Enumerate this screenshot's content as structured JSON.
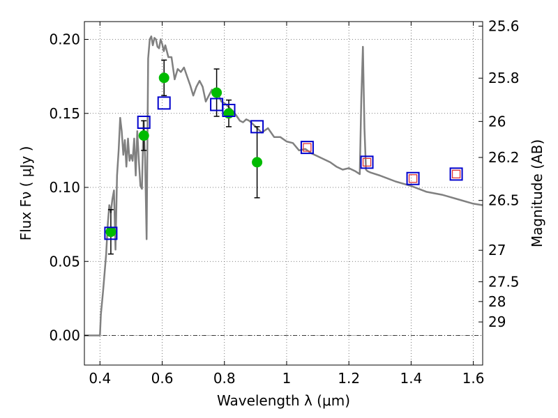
{
  "chart_data": {
    "type": "scatter",
    "xlabel": "Wavelength  λ (μm)",
    "ylabel": "Flux  Fν  ( μJy )",
    "y2label": "Magnitude (AB)",
    "xlim": [
      0.35,
      1.63
    ],
    "ylim": [
      -0.02,
      0.212
    ],
    "x_ticks": [
      0.4,
      0.6,
      0.8,
      1.0,
      1.2,
      1.4,
      1.6
    ],
    "x_tick_labels": [
      "0.4",
      "0.6",
      "0.8",
      "1",
      "1.2",
      "1.4",
      "1.6"
    ],
    "y_ticks": [
      0.0,
      0.05,
      0.1,
      0.15,
      0.2
    ],
    "y_tick_labels": [
      "0.00",
      "0.05",
      "0.10",
      "0.15",
      "0.20"
    ],
    "mag_ticks": [
      {
        "label": "25.6",
        "mag": 25.6
      },
      {
        "label": "25.8",
        "mag": 25.8
      },
      {
        "label": "26",
        "mag": 26.0
      },
      {
        "label": "26.2",
        "mag": 26.2
      },
      {
        "label": "26.5",
        "mag": 26.5
      },
      {
        "label": "27",
        "mag": 27.0
      },
      {
        "label": "27.5",
        "mag": 27.5
      },
      {
        "label": "28",
        "mag": 28.0
      },
      {
        "label": "29",
        "mag": 29.0
      }
    ],
    "grid": true,
    "zero_line": 0.0,
    "colors": {
      "model": "#808080",
      "observed": "#00bb00",
      "model_box": "#0000cc",
      "upper_box": "#dd3333",
      "errorbar": "#000000"
    },
    "series": [
      {
        "name": "model spectrum",
        "kind": "line",
        "x": [
          0.35,
          0.4,
          0.403,
          0.41,
          0.42,
          0.425,
          0.43,
          0.435,
          0.44,
          0.445,
          0.45,
          0.455,
          0.46,
          0.465,
          0.47,
          0.475,
          0.48,
          0.485,
          0.49,
          0.495,
          0.5,
          0.505,
          0.51,
          0.515,
          0.52,
          0.525,
          0.53,
          0.535,
          0.54,
          0.545,
          0.55,
          0.555,
          0.56,
          0.565,
          0.57,
          0.575,
          0.58,
          0.585,
          0.59,
          0.595,
          0.6,
          0.605,
          0.61,
          0.62,
          0.63,
          0.64,
          0.65,
          0.66,
          0.67,
          0.68,
          0.69,
          0.7,
          0.71,
          0.72,
          0.73,
          0.74,
          0.75,
          0.76,
          0.77,
          0.78,
          0.79,
          0.8,
          0.81,
          0.82,
          0.83,
          0.84,
          0.85,
          0.86,
          0.87,
          0.88,
          0.89,
          0.9,
          0.92,
          0.94,
          0.96,
          0.98,
          1.0,
          1.02,
          1.04,
          1.06,
          1.08,
          1.1,
          1.12,
          1.14,
          1.16,
          1.18,
          1.2,
          1.22,
          1.235,
          1.24,
          1.245,
          1.25,
          1.255,
          1.26,
          1.27,
          1.3,
          1.35,
          1.4,
          1.45,
          1.5,
          1.55,
          1.6,
          1.63
        ],
        "y": [
          0.0,
          0.0,
          0.014,
          0.03,
          0.055,
          0.075,
          0.088,
          0.083,
          0.092,
          0.098,
          0.058,
          0.108,
          0.125,
          0.147,
          0.138,
          0.122,
          0.132,
          0.114,
          0.133,
          0.118,
          0.122,
          0.118,
          0.133,
          0.108,
          0.138,
          0.118,
          0.101,
          0.099,
          0.145,
          0.12,
          0.065,
          0.187,
          0.2,
          0.202,
          0.196,
          0.201,
          0.2,
          0.195,
          0.194,
          0.2,
          0.197,
          0.192,
          0.196,
          0.188,
          0.188,
          0.173,
          0.18,
          0.178,
          0.181,
          0.175,
          0.169,
          0.162,
          0.168,
          0.172,
          0.168,
          0.158,
          0.162,
          0.166,
          0.162,
          0.163,
          0.158,
          0.157,
          0.155,
          0.153,
          0.151,
          0.148,
          0.145,
          0.144,
          0.146,
          0.145,
          0.143,
          0.141,
          0.137,
          0.14,
          0.134,
          0.134,
          0.131,
          0.13,
          0.125,
          0.126,
          0.123,
          0.121,
          0.119,
          0.117,
          0.114,
          0.112,
          0.113,
          0.111,
          0.109,
          0.16,
          0.195,
          0.14,
          0.112,
          0.111,
          0.11,
          0.108,
          0.104,
          0.101,
          0.097,
          0.095,
          0.092,
          0.089,
          0.088
        ]
      },
      {
        "name": "observed",
        "kind": "points",
        "points": [
          {
            "x": 0.435,
            "y": 0.07,
            "err": 0.015
          },
          {
            "x": 0.541,
            "y": 0.135,
            "err": 0.01
          },
          {
            "x": 0.606,
            "y": 0.174,
            "err": 0.012
          },
          {
            "x": 0.775,
            "y": 0.164,
            "err": 0.016
          },
          {
            "x": 0.814,
            "y": 0.15,
            "err": 0.009
          },
          {
            "x": 0.905,
            "y": 0.117,
            "err": 0.024
          }
        ]
      },
      {
        "name": "model photometry",
        "kind": "open squares",
        "points": [
          {
            "x": 0.435,
            "y": 0.069
          },
          {
            "x": 0.541,
            "y": 0.144
          },
          {
            "x": 0.606,
            "y": 0.157
          },
          {
            "x": 0.775,
            "y": 0.156
          },
          {
            "x": 0.814,
            "y": 0.152
          },
          {
            "x": 0.905,
            "y": 0.141
          },
          {
            "x": 1.066,
            "y": 0.127
          },
          {
            "x": 1.258,
            "y": 0.117
          },
          {
            "x": 1.406,
            "y": 0.106
          },
          {
            "x": 1.545,
            "y": 0.109
          }
        ]
      },
      {
        "name": "inner squares",
        "kind": "small open squares",
        "points": [
          {
            "x": 1.066,
            "y": 0.127
          },
          {
            "x": 1.258,
            "y": 0.117
          },
          {
            "x": 1.406,
            "y": 0.106
          },
          {
            "x": 1.545,
            "y": 0.109
          }
        ]
      }
    ]
  }
}
